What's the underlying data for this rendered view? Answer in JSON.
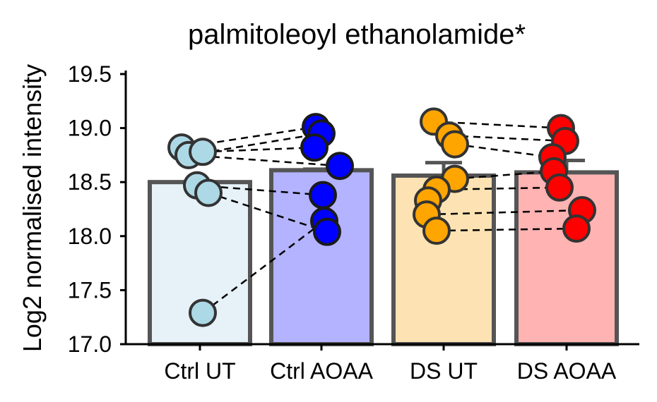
{
  "chart_data": {
    "type": "bar",
    "title": "palmitoleoyl ethanolamide*",
    "xlabel": "",
    "ylabel": "Log2 normalised intensity",
    "ylim": [
      17.0,
      19.5
    ],
    "yticks": [
      "17.0",
      "17.5",
      "18.0",
      "18.5",
      "19.0",
      "19.5"
    ],
    "categories": [
      "Ctrl UT",
      "Ctrl AOAA",
      "DS UT",
      "DS AOAA"
    ],
    "values": [
      18.5,
      18.61,
      18.56,
      18.59
    ],
    "error_upper": [
      18.5,
      18.62,
      18.68,
      18.7
    ],
    "grid": false,
    "legend": "none",
    "colors": {
      "bar_fill": [
        "#e6f1f8",
        "#b3b3ff",
        "#fde2b3",
        "#ffb3b3"
      ],
      "point_fill": [
        "#add8e6",
        "#0000ff",
        "#ffa500",
        "#ff0000"
      ],
      "point_stroke": [
        "#333333",
        "#1a1a1a",
        "#333333",
        "#333333"
      ],
      "bar_stroke": "#555555"
    },
    "points": [
      [
        18.82,
        18.75,
        18.78,
        18.47,
        18.4,
        17.29
      ],
      [
        19.01,
        18.95,
        18.82,
        18.65,
        18.38,
        18.14,
        18.04
      ],
      [
        19.06,
        18.93,
        18.85,
        18.53,
        18.43,
        18.33,
        18.2,
        18.05
      ],
      [
        19.0,
        18.88,
        18.73,
        18.6,
        18.45,
        18.24,
        18.07
      ]
    ],
    "pairs": [
      [
        [
          18.82,
          19.01
        ],
        [
          19.06,
          19.0
        ]
      ],
      [
        [
          18.75,
          18.95
        ],
        [
          18.93,
          18.88
        ]
      ],
      [
        [
          18.78,
          18.82
        ],
        [
          18.85,
          18.73
        ]
      ],
      [
        [
          18.47,
          18.38
        ],
        [
          18.53,
          18.6
        ]
      ],
      [
        [
          18.4,
          18.04
        ],
        [
          18.43,
          18.45
        ]
      ],
      [
        [
          17.29,
          18.14
        ],
        [
          18.2,
          18.24
        ]
      ],
      [
        [
          18.75,
          18.65
        ],
        [
          18.05,
          18.07
        ]
      ]
    ]
  }
}
